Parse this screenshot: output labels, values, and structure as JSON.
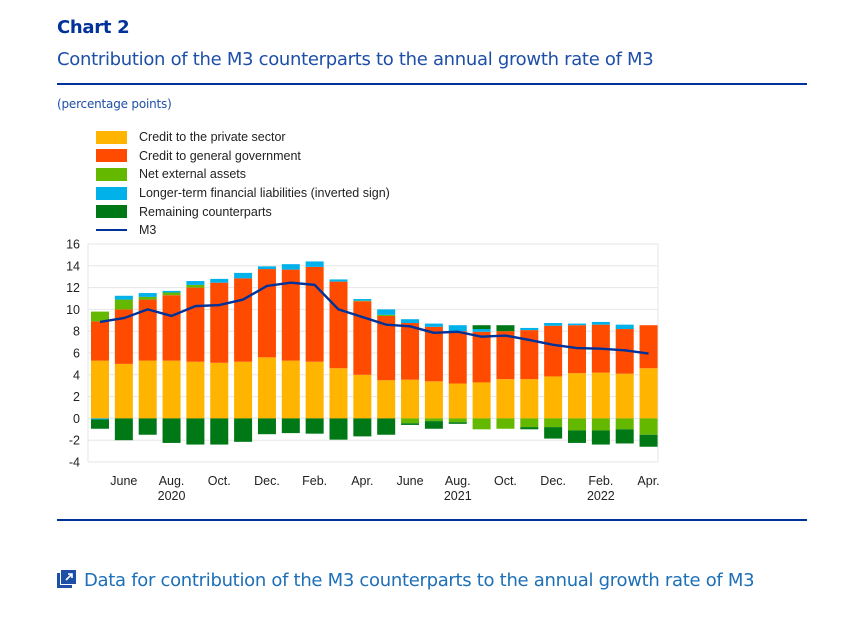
{
  "header": {
    "chart_label": "Chart 2",
    "title": "Contribution of the M3 counterparts to the annual growth rate of M3",
    "units": "(percentage points)"
  },
  "footer": {
    "data_link_text": "Data for contribution of the M3 counterparts to the annual growth rate of M3",
    "data_link_icon": "external-data-icon"
  },
  "colors": {
    "private_credit": "#FFB400",
    "government_credit": "#FF4B00",
    "net_external": "#65B800",
    "longer_term_liab": "#00B1EA",
    "remaining": "#007816",
    "m3_line": "#003299",
    "grid": "#e6e6e6",
    "title_dark": "#003299"
  },
  "chart_data": {
    "type": "bar",
    "stacked": true,
    "title": "Contribution of the M3 counterparts to the annual growth rate of M3",
    "ylabel": "percentage points",
    "xlabel": "",
    "ylim": [
      -4,
      16
    ],
    "yticks": [
      -4,
      -2,
      0,
      2,
      4,
      6,
      8,
      10,
      12,
      14,
      16
    ],
    "grid": true,
    "legend_position": "top-left",
    "categories": [
      "May 2020",
      "Jun 2020",
      "Jul 2020",
      "Aug 2020",
      "Sep 2020",
      "Oct 2020",
      "Nov 2020",
      "Dec 2020",
      "Jan 2021",
      "Feb 2021",
      "Mar 2021",
      "Apr 2021",
      "May 2021",
      "Jun 2021",
      "Jul 2021",
      "Aug 2021",
      "Sep 2021",
      "Oct 2021",
      "Nov 2021",
      "Dec 2021",
      "Jan 2022",
      "Feb 2022",
      "Mar 2022",
      "Apr 2022"
    ],
    "xtick_labels": [
      {
        "index": 1,
        "label": "June",
        "year": ""
      },
      {
        "index": 3,
        "label": "Aug.",
        "year": "2020"
      },
      {
        "index": 5,
        "label": "Oct.",
        "year": ""
      },
      {
        "index": 7,
        "label": "Dec.",
        "year": ""
      },
      {
        "index": 9,
        "label": "Feb.",
        "year": ""
      },
      {
        "index": 11,
        "label": "Apr.",
        "year": ""
      },
      {
        "index": 13,
        "label": "June",
        "year": ""
      },
      {
        "index": 15,
        "label": "Aug.",
        "year": "2021"
      },
      {
        "index": 17,
        "label": "Oct.",
        "year": ""
      },
      {
        "index": 19,
        "label": "Dec.",
        "year": ""
      },
      {
        "index": 21,
        "label": "Feb.",
        "year": "2022"
      },
      {
        "index": 23,
        "label": "Apr.",
        "year": ""
      }
    ],
    "series": [
      {
        "name": "Credit to the private sector",
        "kind": "bar",
        "color_key": "private_credit",
        "values": [
          5.3,
          5.0,
          5.3,
          5.3,
          5.2,
          5.1,
          5.2,
          5.6,
          5.3,
          5.2,
          4.6,
          4.0,
          3.5,
          3.55,
          3.4,
          3.2,
          3.3,
          3.6,
          3.6,
          3.85,
          4.15,
          4.2,
          4.1,
          4.6
        ]
      },
      {
        "name": "Credit to general government",
        "kind": "bar",
        "color_key": "government_credit",
        "values": [
          3.6,
          5.0,
          5.6,
          6.0,
          6.8,
          7.35,
          7.65,
          8.1,
          8.35,
          8.7,
          7.95,
          6.75,
          5.9,
          5.2,
          5.0,
          4.8,
          4.65,
          4.4,
          4.5,
          4.65,
          4.4,
          4.4,
          4.1,
          3.95
        ]
      },
      {
        "name": "Net external assets",
        "kind": "bar",
        "color_key": "net_external",
        "values": [
          0.9,
          0.9,
          0.25,
          0.25,
          0.25,
          0.0,
          0.0,
          0.0,
          0.0,
          0.0,
          0.0,
          0.05,
          0.1,
          -0.45,
          -0.25,
          -0.35,
          -1.0,
          -0.95,
          -0.8,
          -0.8,
          -1.1,
          -1.1,
          -1.0,
          -1.5
        ]
      },
      {
        "name": "Longer-term financial liabilities (inverted sign)",
        "kind": "bar",
        "color_key": "longer_term_liab",
        "values": [
          -0.1,
          0.35,
          0.35,
          0.15,
          0.35,
          0.35,
          0.5,
          0.25,
          0.5,
          0.5,
          0.2,
          0.15,
          0.5,
          0.35,
          0.3,
          0.55,
          0.25,
          0.0,
          0.2,
          0.25,
          0.15,
          0.25,
          0.4,
          0.0
        ]
      },
      {
        "name": "Remaining counterparts",
        "kind": "bar",
        "color_key": "remaining",
        "values": [
          -0.85,
          -2.0,
          -1.5,
          -2.25,
          -2.4,
          -2.4,
          -2.15,
          -1.45,
          -1.35,
          -1.4,
          -1.95,
          -1.65,
          -1.5,
          -0.15,
          -0.7,
          -0.15,
          0.35,
          0.55,
          -0.2,
          -1.05,
          -1.15,
          -1.3,
          -1.3,
          -1.1
        ]
      },
      {
        "name": "M3",
        "kind": "line",
        "color_key": "m3_line",
        "values": [
          8.85,
          9.2,
          10.0,
          9.4,
          10.3,
          10.4,
          10.9,
          12.15,
          12.45,
          12.25,
          10.0,
          9.3,
          8.6,
          8.45,
          7.85,
          7.95,
          7.5,
          7.6,
          7.2,
          6.75,
          6.45,
          6.4,
          6.25,
          5.95
        ]
      }
    ]
  }
}
